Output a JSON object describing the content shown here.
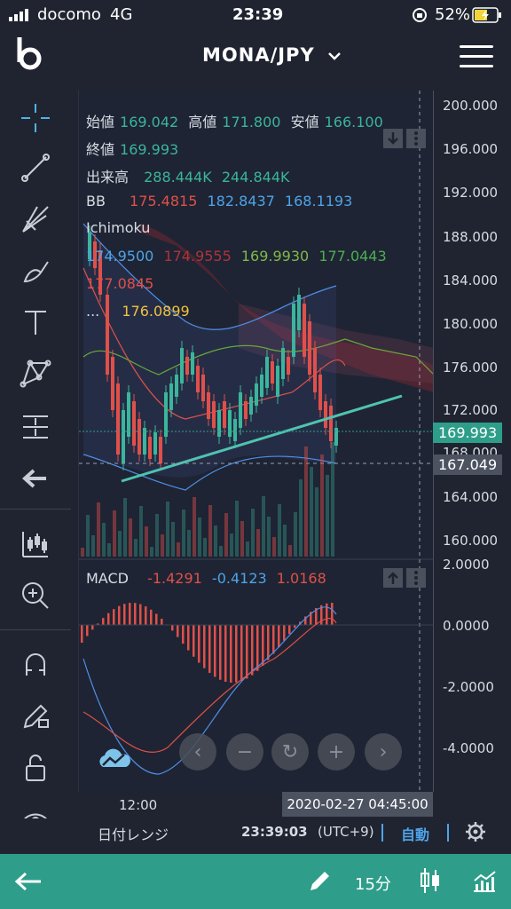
{
  "status_bar": {
    "carrier": "docomo",
    "network": "4G",
    "time": "23:39",
    "battery": "52%"
  },
  "header": {
    "pair": "MONA/JPY"
  },
  "legend": {
    "ohlc": [
      {
        "label": "始値",
        "value": "169.042"
      },
      {
        "label": "高値",
        "value": "171.800"
      },
      {
        "label": "安値",
        "value": "166.100"
      }
    ],
    "close": {
      "label": "終値",
      "value": "169.993"
    },
    "volume": {
      "label": "出来高",
      "v1": "288.444K",
      "v2": "244.844K"
    },
    "bb": {
      "label": "BB",
      "v1": "175.4815",
      "v2": "182.8437",
      "v3": "168.1193"
    },
    "ichimoku": {
      "label": "Ichimoku",
      "v1": "174.9500",
      "v2": "174.9555",
      "v3": "169.9930",
      "v4": "177.0443",
      "v5": "177.0845",
      "v6": "176.0899",
      "more": "..."
    }
  },
  "price_axis": [
    "200.000",
    "196.000",
    "192.000",
    "188.000",
    "184.000",
    "180.000",
    "176.000",
    "172.000",
    "168.000",
    "164.000",
    "160.000"
  ],
  "price_tags": {
    "last": "169.993",
    "cursor": "167.049"
  },
  "macd": {
    "label": "MACD",
    "v1": "-1.4291",
    "v2": "-0.4123",
    "v3": "1.0168"
  },
  "macd_axis": [
    "2.0000",
    "0.0000",
    "-2.0000",
    "-4.0000"
  ],
  "time_axis": {
    "tick": "12:00",
    "cursor_time": "2020-02-27 04:45:00"
  },
  "bottom_bar": {
    "range_label": "日付レンジ",
    "clock": "23:39:03",
    "tz": "(UTC+9)",
    "auto": "自動"
  },
  "nav": {
    "interval": "15分"
  },
  "colors": {
    "accent": "#2e9e8a",
    "up": "#3bb59b",
    "down": "#e0504a",
    "bg": "#1f2430"
  }
}
